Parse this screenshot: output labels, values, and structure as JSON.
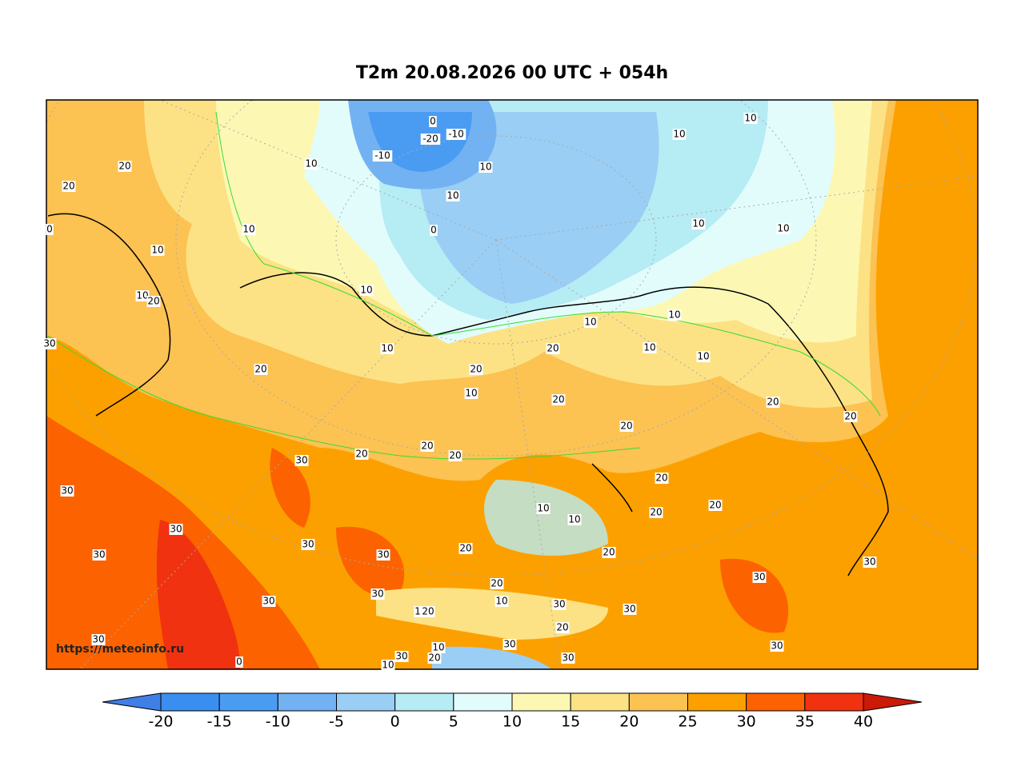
{
  "header": {
    "title": "T2m 20.08.2026 00 UTC + 054h"
  },
  "map": {
    "watermark": "https://meteoinfo.ru",
    "contour_labels": [
      "0",
      "-10",
      "-20",
      "-10",
      "10",
      "10",
      "10",
      "0",
      "20",
      "20",
      "10",
      "10",
      "10",
      "20",
      "30",
      "10",
      "10",
      "20",
      "20",
      "10",
      "20",
      "10",
      "20",
      "10",
      "10",
      "10",
      "10",
      "10",
      "10",
      "10",
      "20",
      "20",
      "20",
      "20",
      "20",
      "20",
      "30",
      "30",
      "20",
      "20",
      "20",
      "10",
      "10",
      "20",
      "20",
      "30",
      "30",
      "30",
      "30",
      "30",
      "30",
      "20",
      "10",
      "30",
      "30",
      "30",
      "30",
      "1",
      "20",
      "20",
      "30",
      "30",
      "30",
      "0",
      "30",
      "20",
      "10",
      "30",
      "10",
      "0"
    ]
  },
  "colorbar": {
    "ticks": [
      -20,
      -15,
      -10,
      -5,
      0,
      5,
      10,
      15,
      20,
      25,
      30,
      35,
      40
    ],
    "colors": [
      "#3f7fe6",
      "#3a8ef0",
      "#4a9cf2",
      "#72b2f2",
      "#9acef4",
      "#b6ecf4",
      "#e2fcfc",
      "#fcf8b4",
      "#fce284",
      "#fcc252",
      "#fca000",
      "#fc6200",
      "#f03210",
      "#cc1a08"
    ]
  }
}
